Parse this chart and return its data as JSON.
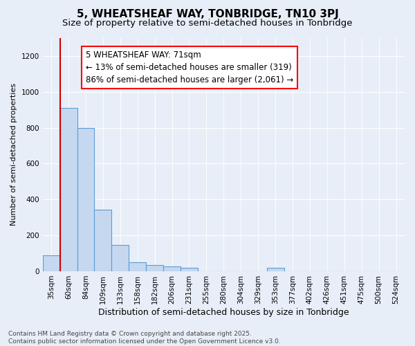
{
  "title": "5, WHEATSHEAF WAY, TONBRIDGE, TN10 3PJ",
  "subtitle": "Size of property relative to semi-detached houses in Tonbridge",
  "xlabel": "Distribution of semi-detached houses by size in Tonbridge",
  "ylabel": "Number of semi-detached properties",
  "categories": [
    "35sqm",
    "60sqm",
    "84sqm",
    "109sqm",
    "133sqm",
    "158sqm",
    "182sqm",
    "206sqm",
    "231sqm",
    "255sqm",
    "280sqm",
    "304sqm",
    "329sqm",
    "353sqm",
    "377sqm",
    "402sqm",
    "426sqm",
    "451sqm",
    "475sqm",
    "500sqm",
    "524sqm"
  ],
  "values": [
    90,
    910,
    800,
    345,
    148,
    50,
    35,
    25,
    20,
    0,
    0,
    0,
    0,
    18,
    0,
    0,
    0,
    0,
    0,
    0,
    0
  ],
  "bar_color": "#c5d8f0",
  "bar_edge_color": "#5b9bd5",
  "vline_color": "#cc0000",
  "annotation_text": "5 WHEATSHEAF WAY: 71sqm\n← 13% of semi-detached houses are smaller (319)\n86% of semi-detached houses are larger (2,061) →",
  "ylim": [
    0,
    1300
  ],
  "yticks": [
    0,
    200,
    400,
    600,
    800,
    1000,
    1200
  ],
  "background_color": "#e8eef8",
  "plot_bg_color": "#e8eef8",
  "footer_line1": "Contains HM Land Registry data © Crown copyright and database right 2025.",
  "footer_line2": "Contains public sector information licensed under the Open Government Licence v3.0.",
  "title_fontsize": 11,
  "subtitle_fontsize": 9.5,
  "xlabel_fontsize": 9,
  "ylabel_fontsize": 8,
  "tick_fontsize": 7.5,
  "annotation_fontsize": 8.5,
  "footer_fontsize": 6.5
}
